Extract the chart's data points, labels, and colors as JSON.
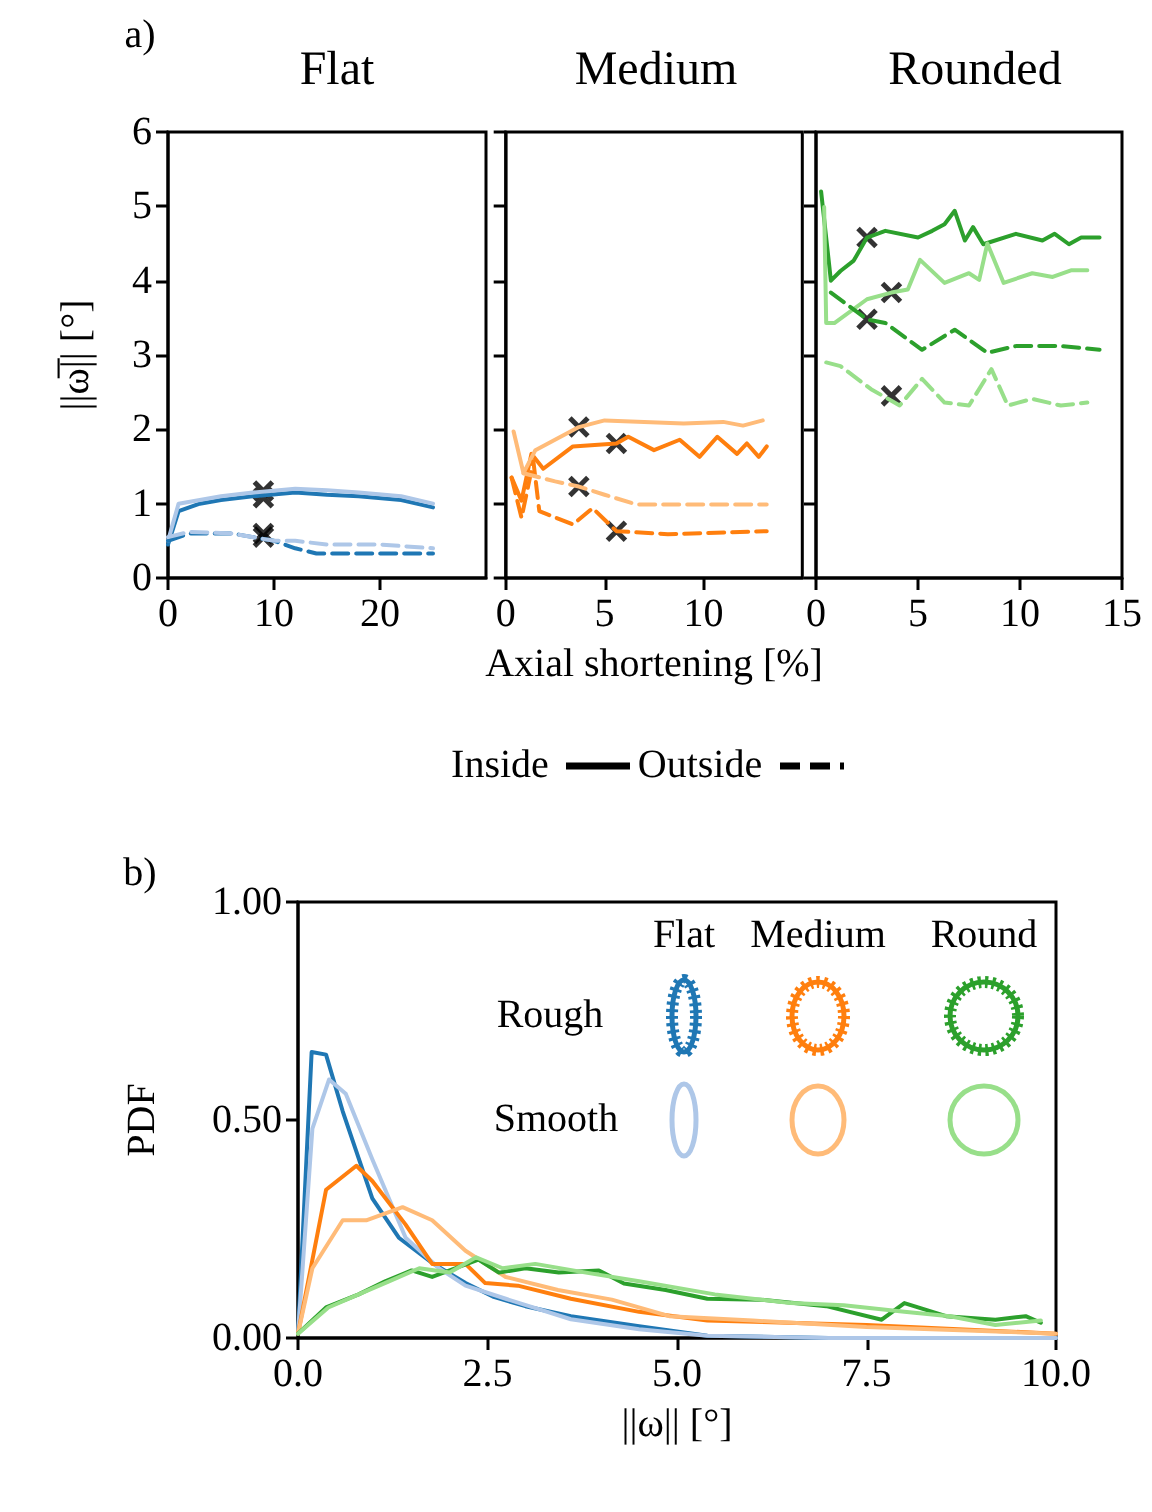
{
  "chart_data": [
    {
      "type": "line",
      "title": "Flat",
      "ylabel": "||ω̅|| [°]",
      "annotations": [
        "a)"
      ],
      "xlim": [
        0,
        30
      ],
      "xticks": [
        0,
        10,
        20
      ],
      "ylim": [
        0,
        6
      ],
      "yticks": [
        0,
        1,
        2,
        3,
        4,
        5,
        6
      ],
      "marker": "none",
      "series": [
        {
          "color": "#1f77b4",
          "line_style": "solid",
          "x": [
            0,
            1,
            3,
            5,
            8,
            12,
            15,
            18,
            22,
            25
          ],
          "values": [
            0.45,
            0.9,
            1.0,
            1.05,
            1.1,
            1.15,
            1.12,
            1.1,
            1.05,
            0.95
          ]
        },
        {
          "color": "#aec7e8",
          "line_style": "solid",
          "x": [
            0,
            1,
            3,
            5,
            8,
            12,
            15,
            18,
            22,
            25
          ],
          "values": [
            0.5,
            1.0,
            1.05,
            1.1,
            1.15,
            1.2,
            1.18,
            1.15,
            1.1,
            1.0
          ]
        },
        {
          "color": "#1f77b4",
          "line_style": "dashed",
          "x": [
            0,
            2,
            6,
            10,
            12,
            14,
            20,
            25
          ],
          "values": [
            0.5,
            0.6,
            0.6,
            0.5,
            0.4,
            0.33,
            0.33,
            0.33
          ]
        },
        {
          "color": "#aec7e8",
          "line_style": "dashed",
          "x": [
            0,
            2,
            6,
            10,
            12,
            15,
            20,
            25
          ],
          "values": [
            0.55,
            0.62,
            0.6,
            0.5,
            0.5,
            0.45,
            0.45,
            0.4
          ]
        },
        {
          "type": "scatter",
          "color": "#000000",
          "marker": "cross",
          "x": [
            9,
            9,
            9,
            9
          ],
          "values": [
            1.17,
            1.08,
            0.6,
            0.55
          ]
        }
      ]
    },
    {
      "type": "line",
      "title": "Medium",
      "xlabel": "Axial shortening [%]",
      "annotations": [
        "Inside",
        "Outside"
      ],
      "xlim": [
        0,
        15
      ],
      "xticks": [
        0,
        5,
        10
      ],
      "ylim": [
        0,
        6
      ],
      "yticks": [
        0,
        1,
        2,
        3,
        4,
        5,
        6
      ],
      "tick_labels": "x",
      "marker": "none",
      "series": [
        {
          "color": "#ff7f0e",
          "line_style": "solid",
          "x": [
            0.3,
            0.8,
            1.3,
            1.9,
            3.4,
            5.6,
            6.2,
            7.5,
            8.8,
            9.8,
            10.7,
            11.7,
            12.2,
            12.8,
            13.2
          ],
          "values": [
            1.35,
            1.04,
            1.67,
            1.47,
            1.77,
            1.81,
            1.9,
            1.72,
            1.86,
            1.63,
            1.9,
            1.67,
            1.81,
            1.63,
            1.77
          ]
        },
        {
          "color": "#ffbb78",
          "line_style": "solid",
          "x": [
            0.4,
            0.9,
            1.5,
            3.7,
            5,
            7,
            9,
            11,
            12,
            13
          ],
          "values": [
            1.97,
            1.41,
            1.72,
            2.03,
            2.12,
            2.1,
            2.08,
            2.1,
            2.05,
            2.12
          ]
        },
        {
          "color": "#ff7f0e",
          "line_style": "dashed",
          "x": [
            0.3,
            0.8,
            1.4,
            1.7,
            3.4,
            4.4,
            5.6,
            8.2,
            13.2
          ],
          "values": [
            1.35,
            0.81,
            1.57,
            0.9,
            0.72,
            0.94,
            0.63,
            0.59,
            0.63
          ]
        },
        {
          "color": "#ffbb78",
          "line_style": "dashed",
          "x": [
            0.9,
            2.5,
            3.7,
            5,
            6.6,
            9.8,
            13.2
          ],
          "values": [
            1.41,
            1.3,
            1.23,
            1.12,
            0.99,
            0.99,
            0.99
          ]
        },
        {
          "type": "scatter",
          "color": "#000000",
          "marker": "cross",
          "x": [
            3.7,
            5.6,
            3.7,
            5.6
          ],
          "values": [
            2.03,
            1.81,
            1.23,
            0.63
          ]
        }
      ]
    },
    {
      "type": "line",
      "title": "Rounded",
      "xlim": [
        0,
        15
      ],
      "xticks": [
        0,
        5,
        10,
        15
      ],
      "ylim": [
        0,
        6
      ],
      "yticks": [
        0,
        1,
        2,
        3,
        4,
        5,
        6
      ],
      "tick_labels": "x",
      "marker": "none",
      "series": [
        {
          "color": "#2ca02c",
          "line_style": "solid",
          "x": [
            0.25,
            0.73,
            1.2,
            1.85,
            2.5,
            3.4,
            5.0,
            5.7,
            6.3,
            6.8,
            7.3,
            7.7,
            8.2,
            9.8,
            11.1,
            11.7,
            12.4,
            13,
            13.9
          ],
          "values": [
            5.2,
            4.0,
            4.13,
            4.27,
            4.58,
            4.67,
            4.58,
            4.67,
            4.76,
            4.94,
            4.54,
            4.72,
            4.49,
            4.63,
            4.54,
            4.63,
            4.49,
            4.58,
            4.58
          ]
        },
        {
          "color": "#98df8a",
          "line_style": "solid",
          "x": [
            0.4,
            0.5,
            0.9,
            2.5,
            3.7,
            4.5,
            5.1,
            6.3,
            7.5,
            8.0,
            8.4,
            9.2,
            10.6,
            11.6,
            12.5,
            13.3
          ],
          "values": [
            4.99,
            3.43,
            3.43,
            3.75,
            3.84,
            3.88,
            4.28,
            3.97,
            4.1,
            4.01,
            4.5,
            3.97,
            4.1,
            4.05,
            4.14,
            4.14
          ]
        },
        {
          "color": "#2ca02c",
          "line_style": "dashed",
          "x": [
            0.73,
            2.5,
            3.4,
            5.2,
            6.8,
            8.4,
            9.8,
            12,
            13.9
          ],
          "values": [
            3.84,
            3.48,
            3.43,
            3.07,
            3.34,
            3.03,
            3.12,
            3.12,
            3.07
          ]
        },
        {
          "color": "#98df8a",
          "line_style": "dashed",
          "x": [
            0.5,
            1.2,
            2.7,
            4.1,
            5.2,
            6.3,
            7.5,
            8.6,
            9.4,
            10.6,
            12,
            13.3
          ],
          "values": [
            2.9,
            2.85,
            2.54,
            2.32,
            2.68,
            2.36,
            2.32,
            2.81,
            2.32,
            2.41,
            2.32,
            2.36
          ]
        },
        {
          "type": "scatter",
          "color": "#000000",
          "marker": "cross",
          "x": [
            2.5,
            3.7,
            2.5,
            3.7
          ],
          "values": [
            4.58,
            3.84,
            3.48,
            2.45
          ]
        }
      ]
    },
    {
      "type": "line",
      "xlabel": "||ω|| [°]",
      "ylabel": "PDF",
      "annotations": [
        "b)",
        "Flat",
        "Medium",
        "Round",
        "Rough",
        "Smooth"
      ],
      "xlim": [
        0,
        10
      ],
      "xticks": [
        {
          "value": 0,
          "label": "0.0"
        },
        {
          "value": 2.5,
          "label": "2.5"
        },
        {
          "value": 5,
          "label": "5.0"
        },
        {
          "value": 7.5,
          "label": "7.5"
        },
        {
          "value": 10,
          "label": "10.0"
        }
      ],
      "ylim": [
        0,
        1
      ],
      "yticks": [
        {
          "value": 0,
          "label": "0.00"
        },
        {
          "value": 0.5,
          "label": "0.50"
        },
        {
          "value": 1,
          "label": "1.00"
        }
      ],
      "marker": "none",
      "series": [
        {
          "color": "#1f77b4",
          "line_style": "solid",
          "x": [
            0,
            0.18,
            0.37,
            0.59,
            0.98,
            1.33,
            1.77,
            2.21,
            2.57,
            3.0,
            3.6,
            4.5,
            5.4,
            7,
            10
          ],
          "values": [
            0.01,
            0.656,
            0.65,
            0.52,
            0.32,
            0.23,
            0.172,
            0.126,
            0.095,
            0.073,
            0.05,
            0.027,
            0.005,
            0,
            0
          ]
        },
        {
          "color": "#aec7e8",
          "line_style": "solid",
          "x": [
            0,
            0.19,
            0.41,
            0.63,
            0.98,
            1.42,
            1.86,
            2.21,
            2.74,
            3.6,
            4.5,
            5.4,
            7,
            10
          ],
          "values": [
            0.01,
            0.48,
            0.593,
            0.56,
            0.41,
            0.23,
            0.16,
            0.12,
            0.09,
            0.043,
            0.02,
            0.005,
            0,
            0
          ]
        },
        {
          "color": "#ff7f0e",
          "line_style": "solid",
          "x": [
            0,
            0.37,
            0.77,
            0.98,
            1.42,
            1.77,
            2.21,
            2.47,
            2.9,
            3.6,
            4.5,
            5.4,
            7.5,
            10
          ],
          "values": [
            0.01,
            0.34,
            0.395,
            0.36,
            0.26,
            0.17,
            0.17,
            0.126,
            0.12,
            0.09,
            0.06,
            0.04,
            0.03,
            0.01
          ]
        },
        {
          "color": "#ffbb78",
          "line_style": "solid",
          "x": [
            0,
            0.19,
            0.59,
            0.9,
            1.38,
            1.77,
            2.21,
            2.74,
            3.43,
            4.14,
            4.9,
            6,
            7.5,
            10
          ],
          "values": [
            0.01,
            0.16,
            0.27,
            0.27,
            0.3,
            0.27,
            0.2,
            0.14,
            0.11,
            0.088,
            0.05,
            0.04,
            0.025,
            0.01
          ]
        },
        {
          "color": "#2ca02c",
          "line_style": "solid",
          "x": [
            0,
            0.37,
            0.8,
            1.15,
            1.5,
            1.77,
            2.38,
            2.65,
            3.0,
            3.44,
            3.97,
            4.3,
            4.85,
            5.4,
            6.09,
            6.97,
            7.7,
            8.0,
            8.55,
            9.2,
            9.6,
            9.8
          ],
          "values": [
            0.01,
            0.07,
            0.1,
            0.13,
            0.155,
            0.14,
            0.18,
            0.15,
            0.16,
            0.15,
            0.155,
            0.125,
            0.11,
            0.09,
            0.088,
            0.073,
            0.042,
            0.08,
            0.05,
            0.042,
            0.05,
            0.035
          ]
        },
        {
          "color": "#98df8a",
          "line_style": "solid",
          "x": [
            0,
            0.4,
            0.8,
            1.2,
            1.6,
            2.0,
            2.35,
            2.7,
            3.13,
            3.8,
            4.5,
            5.5,
            6.5,
            7.2,
            8.0,
            8.6,
            9.2,
            9.8
          ],
          "values": [
            0.01,
            0.07,
            0.1,
            0.13,
            0.16,
            0.15,
            0.185,
            0.16,
            0.17,
            0.15,
            0.13,
            0.1,
            0.08,
            0.075,
            0.06,
            0.05,
            0.03,
            0.04
          ]
        }
      ]
    }
  ]
}
